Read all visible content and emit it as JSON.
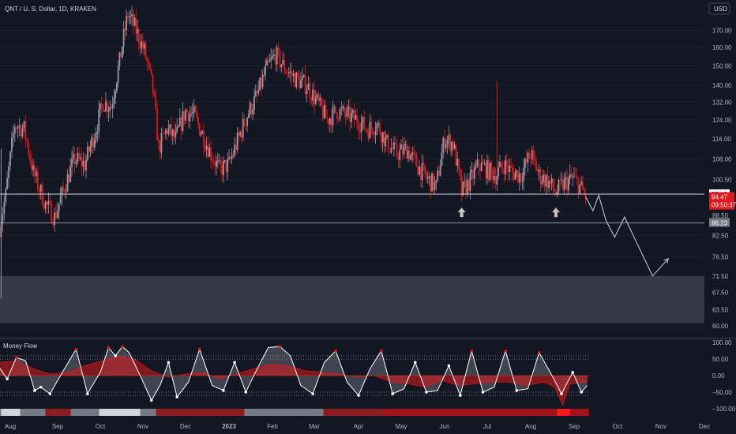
{
  "header": {
    "symbol": "QNT / U. S. Dollar, 1D, KRAKEN",
    "currency": "USD"
  },
  "colors": {
    "background": "#131722",
    "bull": "#9598a1",
    "bear": "#e0171b",
    "grid": "#2a2e39",
    "level_line": "#d1d4dc",
    "zone": "#353944"
  },
  "chart_data": [
    {
      "type": "candlestick",
      "price_axis": {
        "ticks": [
          60.0,
          63.5,
          67.5,
          71.5,
          76.5,
          82.5,
          88.5,
          100.5,
          108.0,
          116.0,
          124.0,
          132.0,
          140.0,
          150.0,
          160.0,
          170.0
        ],
        "tick_labels": [
          "60.00",
          "63.50",
          "67.50",
          "71.50",
          "76.50",
          "82.50",
          "88.50",
          "100.50",
          "108.00",
          "116.00",
          "124.00",
          "132.00",
          "140.00",
          "150.00",
          "160.00",
          "170.00"
        ],
        "scale": "log"
      },
      "time_axis": {
        "labels": [
          "Aug",
          "Sep",
          "Oct",
          "Nov",
          "Dec",
          "2023",
          "Feb",
          "Mar",
          "Apr",
          "May",
          "Jun",
          "Jul",
          "Aug",
          "Sep",
          "Oct",
          "Nov",
          "Dec"
        ],
        "positions": [
          "2022-08-01",
          "2022-09-01",
          "2022-10-01",
          "2022-11-01",
          "2022-12-01",
          "2023-01-01",
          "2023-02-01",
          "2023-03-01",
          "2023-04-01",
          "2023-05-01",
          "2023-06-01",
          "2023-07-01",
          "2023-08-01",
          "2023-09-01",
          "2023-10-01",
          "2023-11-01",
          "2023-12-01"
        ]
      },
      "price_path": [
        [
          "2022-07-25",
          85
        ],
        [
          "2022-07-29",
          95
        ],
        [
          "2022-08-04",
          122
        ],
        [
          "2022-08-10",
          120
        ],
        [
          "2022-08-16",
          103
        ],
        [
          "2022-08-24",
          92
        ],
        [
          "2022-08-30",
          88
        ],
        [
          "2022-09-06",
          98
        ],
        [
          "2022-09-13",
          108
        ],
        [
          "2022-09-20",
          106
        ],
        [
          "2022-09-27",
          118
        ],
        [
          "2022-10-03",
          132
        ],
        [
          "2022-10-09",
          130
        ],
        [
          "2022-10-15",
          152
        ],
        [
          "2022-10-21",
          180
        ],
        [
          "2022-10-26",
          172
        ],
        [
          "2022-11-02",
          158
        ],
        [
          "2022-11-08",
          138
        ],
        [
          "2022-11-12",
          112
        ],
        [
          "2022-11-18",
          120
        ],
        [
          "2022-11-24",
          116
        ],
        [
          "2022-12-01",
          128
        ],
        [
          "2022-12-07",
          126
        ],
        [
          "2022-12-13",
          118
        ],
        [
          "2022-12-19",
          110
        ],
        [
          "2022-12-25",
          104
        ],
        [
          "2023-01-01",
          106
        ],
        [
          "2023-01-07",
          115
        ],
        [
          "2023-01-14",
          126
        ],
        [
          "2023-01-21",
          135
        ],
        [
          "2023-01-27",
          147
        ],
        [
          "2023-02-03",
          156
        ],
        [
          "2023-02-10",
          148
        ],
        [
          "2023-02-17",
          143
        ],
        [
          "2023-02-24",
          140
        ],
        [
          "2023-03-03",
          132
        ],
        [
          "2023-03-10",
          124
        ],
        [
          "2023-03-17",
          128
        ],
        [
          "2023-03-24",
          126
        ],
        [
          "2023-03-31",
          124
        ],
        [
          "2023-04-07",
          120
        ],
        [
          "2023-04-14",
          122
        ],
        [
          "2023-04-21",
          114
        ],
        [
          "2023-04-28",
          110
        ],
        [
          "2023-05-05",
          112
        ],
        [
          "2023-05-12",
          106
        ],
        [
          "2023-05-19",
          101
        ],
        [
          "2023-05-26",
          98
        ],
        [
          "2023-06-01",
          116
        ],
        [
          "2023-06-07",
          114
        ],
        [
          "2023-06-13",
          96
        ],
        [
          "2023-06-19",
          100
        ],
        [
          "2023-06-25",
          106
        ],
        [
          "2023-07-01",
          104
        ],
        [
          "2023-07-07",
          102
        ],
        [
          "2023-07-13",
          106
        ],
        [
          "2023-07-19",
          103
        ],
        [
          "2023-07-25",
          102
        ],
        [
          "2023-08-01",
          110
        ],
        [
          "2023-08-07",
          102
        ],
        [
          "2023-08-13",
          100
        ],
        [
          "2023-08-19",
          96
        ],
        [
          "2023-08-25",
          99
        ],
        [
          "2023-08-31",
          101
        ],
        [
          "2023-09-04",
          99
        ],
        [
          "2023-09-09",
          94.47
        ]
      ],
      "levels": [
        {
          "price": 95.42,
          "label": "95.42"
        },
        {
          "price": 86.23,
          "label": "86.23"
        }
      ],
      "last_price": {
        "value": "94.47",
        "countdown": "09:50:37"
      },
      "zone": {
        "from": 60.5,
        "to": 71.5
      },
      "projection": [
        [
          "2023-09-09",
          94.5
        ],
        [
          "2023-09-14",
          90
        ],
        [
          "2023-09-18",
          95
        ],
        [
          "2023-09-23",
          87
        ],
        [
          "2023-09-29",
          82
        ],
        [
          "2023-10-06",
          88
        ],
        [
          "2023-10-26",
          71.5
        ],
        [
          "2023-11-06",
          76
        ]
      ],
      "arrows": [
        {
          "date": "2023-06-13",
          "price": 89.5,
          "color": "#c8c9cc"
        },
        {
          "date": "2023-08-19",
          "price": 89.5,
          "color": "#d2b6bd"
        }
      ]
    },
    {
      "type": "area",
      "title": "Money Flow",
      "y_ticks": [
        100.0,
        50.0,
        0.0,
        -50.0,
        -100.0
      ],
      "y_tick_labels": [
        "100.00",
        "50.00",
        "0.00",
        "−50.00",
        "−100.00"
      ],
      "ylim": [
        -110,
        110
      ],
      "guides": [
        60,
        50,
        -50,
        -60
      ],
      "oscillator": [
        [
          "2022-07-24",
          30
        ],
        [
          "2022-07-30",
          -10
        ],
        [
          "2022-08-05",
          55
        ],
        [
          "2022-08-11",
          45
        ],
        [
          "2022-08-17",
          -45
        ],
        [
          "2022-08-21",
          -35
        ],
        [
          "2022-08-27",
          -55
        ],
        [
          "2022-09-05",
          15
        ],
        [
          "2022-09-14",
          80
        ],
        [
          "2022-09-22",
          -55
        ],
        [
          "2022-10-01",
          10
        ],
        [
          "2022-10-07",
          85
        ],
        [
          "2022-10-12",
          60
        ],
        [
          "2022-10-17",
          88
        ],
        [
          "2022-10-22",
          70
        ],
        [
          "2022-10-30",
          0
        ],
        [
          "2022-11-07",
          -75
        ],
        [
          "2022-11-13",
          -30
        ],
        [
          "2022-11-19",
          40
        ],
        [
          "2022-11-25",
          -65
        ],
        [
          "2022-12-03",
          -20
        ],
        [
          "2022-12-11",
          80
        ],
        [
          "2022-12-20",
          -30
        ],
        [
          "2022-12-28",
          -45
        ],
        [
          "2023-01-05",
          40
        ],
        [
          "2023-01-13",
          -50
        ],
        [
          "2023-01-21",
          20
        ],
        [
          "2023-01-29",
          85
        ],
        [
          "2023-02-06",
          88
        ],
        [
          "2023-02-13",
          60
        ],
        [
          "2023-02-20",
          -30
        ],
        [
          "2023-02-28",
          -55
        ],
        [
          "2023-03-08",
          40
        ],
        [
          "2023-03-16",
          75
        ],
        [
          "2023-03-24",
          -20
        ],
        [
          "2023-04-01",
          -60
        ],
        [
          "2023-04-09",
          20
        ],
        [
          "2023-04-17",
          75
        ],
        [
          "2023-04-25",
          -55
        ],
        [
          "2023-05-03",
          -40
        ],
        [
          "2023-05-11",
          40
        ],
        [
          "2023-05-19",
          -50
        ],
        [
          "2023-05-27",
          -45
        ],
        [
          "2023-06-04",
          30
        ],
        [
          "2023-06-12",
          -60
        ],
        [
          "2023-06-20",
          75
        ],
        [
          "2023-06-28",
          -50
        ],
        [
          "2023-07-06",
          -35
        ],
        [
          "2023-07-14",
          75
        ],
        [
          "2023-07-22",
          -45
        ],
        [
          "2023-07-30",
          -40
        ],
        [
          "2023-08-07",
          70
        ],
        [
          "2023-08-15",
          10
        ],
        [
          "2023-08-23",
          -55
        ],
        [
          "2023-08-31",
          10
        ],
        [
          "2023-09-06",
          -50
        ],
        [
          "2023-09-10",
          -30
        ]
      ],
      "money_flow": [
        [
          "2022-07-24",
          40
        ],
        [
          "2022-08-05",
          45
        ],
        [
          "2022-08-17",
          20
        ],
        [
          "2022-08-27",
          5
        ],
        [
          "2022-09-08",
          10
        ],
        [
          "2022-09-20",
          30
        ],
        [
          "2022-10-02",
          45
        ],
        [
          "2022-10-14",
          60
        ],
        [
          "2022-10-26",
          50
        ],
        [
          "2022-11-07",
          15
        ],
        [
          "2022-11-19",
          -5
        ],
        [
          "2022-12-01",
          5
        ],
        [
          "2022-12-13",
          10
        ],
        [
          "2022-12-25",
          -10
        ],
        [
          "2023-01-06",
          5
        ],
        [
          "2023-01-18",
          20
        ],
        [
          "2023-01-30",
          35
        ],
        [
          "2023-02-11",
          30
        ],
        [
          "2023-02-23",
          15
        ],
        [
          "2023-03-07",
          10
        ],
        [
          "2023-03-19",
          5
        ],
        [
          "2023-03-31",
          -5
        ],
        [
          "2023-04-12",
          0
        ],
        [
          "2023-04-24",
          -20
        ],
        [
          "2023-05-06",
          -25
        ],
        [
          "2023-05-18",
          -35
        ],
        [
          "2023-05-30",
          -15
        ],
        [
          "2023-06-11",
          -30
        ],
        [
          "2023-06-23",
          -25
        ],
        [
          "2023-07-05",
          -20
        ],
        [
          "2023-07-17",
          -20
        ],
        [
          "2023-07-29",
          -30
        ],
        [
          "2023-08-10",
          -20
        ],
        [
          "2023-08-18",
          -35
        ],
        [
          "2023-08-24",
          -90
        ],
        [
          "2023-08-29",
          -25
        ],
        [
          "2023-09-10",
          -20
        ]
      ]
    }
  ]
}
